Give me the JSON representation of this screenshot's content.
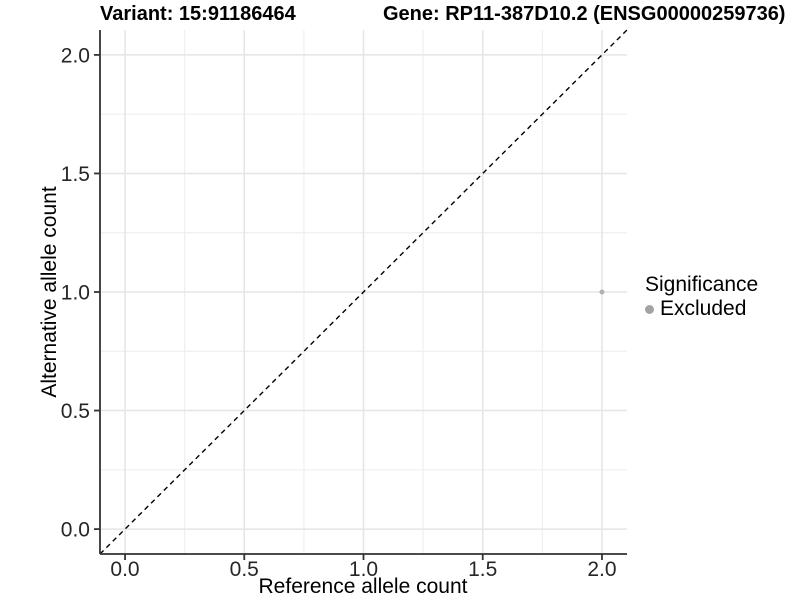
{
  "chart_data": {
    "type": "scatter",
    "title_variant": "Variant: 15:91186464",
    "title_gene": "Gene: RP11-387D10.2 (ENSG00000259736)",
    "xlabel": "Reference allele count",
    "ylabel": "Alternative allele count",
    "xlim": [
      -0.105,
      2.105
    ],
    "ylim": [
      -0.105,
      2.105
    ],
    "x_ticks": {
      "values": [
        0,
        0.5,
        1,
        1.5,
        2
      ],
      "labels": [
        "0.0",
        "0.5",
        "1.0",
        "1.5",
        "2.0"
      ]
    },
    "y_ticks": {
      "values": [
        0,
        0.5,
        1,
        1.5,
        2
      ],
      "labels": [
        "0.0",
        "0.5",
        "1.0",
        "1.5",
        "2.0"
      ]
    },
    "x_minor_ticks": [
      0.25,
      0.75,
      1.25,
      1.75
    ],
    "y_minor_ticks": [
      0.25,
      0.75,
      1.25,
      1.75
    ],
    "grid": "on",
    "points": [
      {
        "x": 2,
        "y": 1,
        "series": "Excluded",
        "color": "#b3b3b3",
        "radius": 2.5
      }
    ],
    "reference_line": {
      "kind": "identity",
      "slope": 1,
      "intercept": 0,
      "style": "dashed",
      "color": "#000000"
    },
    "legend": {
      "position": "right",
      "title": "Significance",
      "items": [
        {
          "label": "Excluded",
          "color": "#a3a3a3"
        }
      ]
    },
    "colors": {
      "background": "#ffffff",
      "grid_major": "#e5e5e5",
      "grid_minor": "#efefef",
      "axis_line": "#333333",
      "tick_mark": "#333333",
      "tick_text": "#262626",
      "point": "#b3b3b3"
    }
  }
}
